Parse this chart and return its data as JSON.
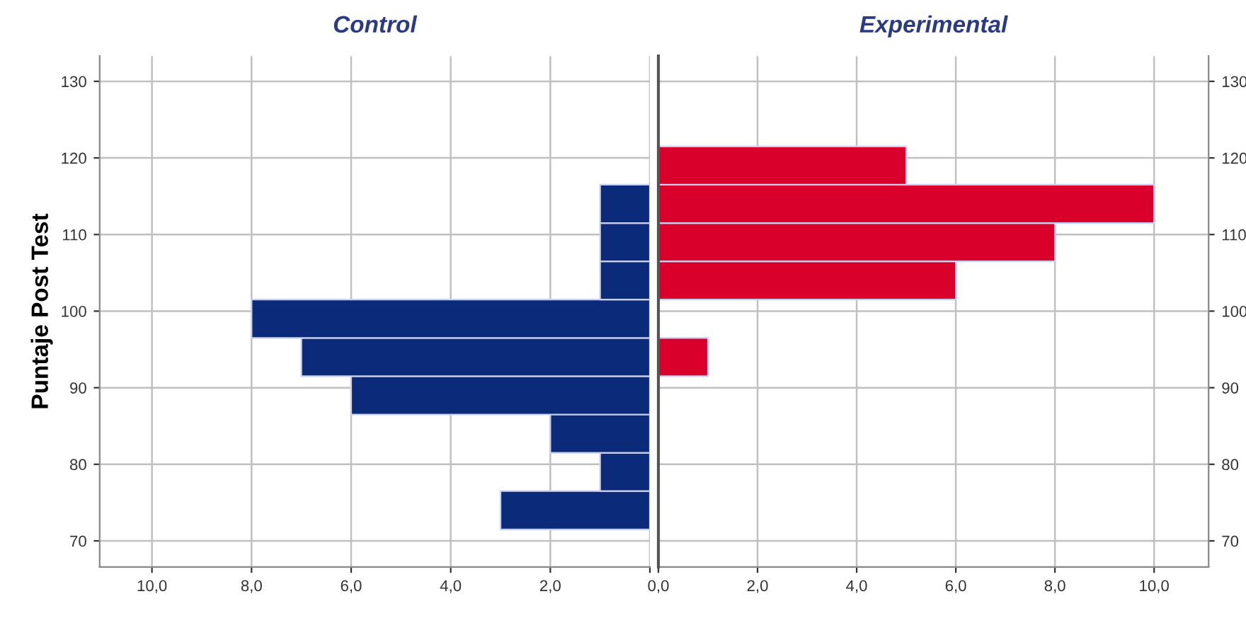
{
  "chart_data": [
    {
      "type": "histogram",
      "orientation": "horizontal",
      "title": "Control",
      "ylabel": "Puntaje Post Test",
      "color": "#0b2a7a",
      "bins": [
        71.5,
        76.5,
        81.5,
        86.5,
        91.5,
        96.5,
        101.5,
        106.5,
        111.5,
        116.5,
        121.5
      ],
      "values": [
        3,
        1,
        2,
        6,
        7,
        8,
        1,
        1,
        1,
        0
      ],
      "xlim": [
        11.05,
        0
      ],
      "xticks": [
        {
          "value": 10,
          "label": "10,0"
        },
        {
          "value": 8,
          "label": "8,0"
        },
        {
          "value": 6,
          "label": "6,0"
        },
        {
          "value": 4,
          "label": "4,0"
        },
        {
          "value": 2,
          "label": "2,0"
        },
        {
          "value": 0,
          "label": null
        }
      ],
      "ylim": [
        66.6,
        133.3
      ],
      "yticks": [
        70,
        80,
        90,
        100,
        110,
        120,
        130
      ],
      "grid": true
    },
    {
      "type": "histogram",
      "orientation": "horizontal",
      "title": "Experimental",
      "color": "#d9002b",
      "bins": [
        71.5,
        76.5,
        81.5,
        86.5,
        91.5,
        96.5,
        101.5,
        106.5,
        111.5,
        116.5,
        121.5
      ],
      "values": [
        0,
        0,
        0,
        0,
        1,
        0,
        6,
        8,
        10,
        5
      ],
      "xlim": [
        0,
        11.1
      ],
      "xticks": [
        {
          "value": 0,
          "label": "0,0"
        },
        {
          "value": 2,
          "label": "2,0"
        },
        {
          "value": 4,
          "label": "4,0"
        },
        {
          "value": 6,
          "label": "6,0"
        },
        {
          "value": 8,
          "label": "8,0"
        },
        {
          "value": 10,
          "label": "10,0"
        }
      ],
      "ylim": [
        66.6,
        133.3
      ],
      "yticks": [
        70,
        80,
        90,
        100,
        110,
        120,
        130
      ],
      "grid": true
    }
  ]
}
